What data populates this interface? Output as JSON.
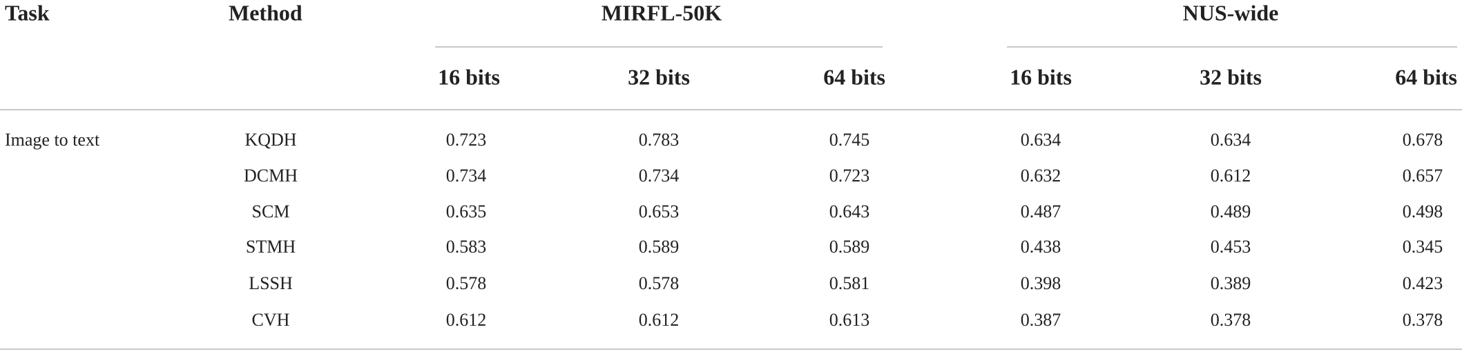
{
  "table": {
    "header": {
      "task": "Task",
      "method": "Method",
      "groups": [
        {
          "name": "MIRFL-50K",
          "columns": [
            "16 bits",
            "32 bits",
            "64 bits"
          ]
        },
        {
          "name": "NUS-wide",
          "columns": [
            "16 bits",
            "32 bits",
            "64 bits"
          ]
        }
      ]
    },
    "rows": [
      {
        "task": "Image to text",
        "method": "KQDH",
        "values": [
          "0.723",
          "0.783",
          "0.745",
          "0.634",
          "0.634",
          "0.678"
        ]
      },
      {
        "method": "DCMH",
        "values": [
          "0.734",
          "0.734",
          "0.723",
          "0.632",
          "0.612",
          "0.657"
        ]
      },
      {
        "method": "SCM",
        "values": [
          "0.635",
          "0.653",
          "0.643",
          "0.487",
          "0.489",
          "0.498"
        ]
      },
      {
        "method": "STMH",
        "values": [
          "0.583",
          "0.589",
          "0.589",
          "0.438",
          "0.453",
          "0.345"
        ]
      },
      {
        "method": "LSSH",
        "values": [
          "0.578",
          "0.578",
          "0.581",
          "0.398",
          "0.389",
          "0.423"
        ]
      },
      {
        "method": "CVH",
        "values": [
          "0.612",
          "0.612",
          "0.613",
          "0.387",
          "0.378",
          "0.378"
        ]
      }
    ]
  }
}
